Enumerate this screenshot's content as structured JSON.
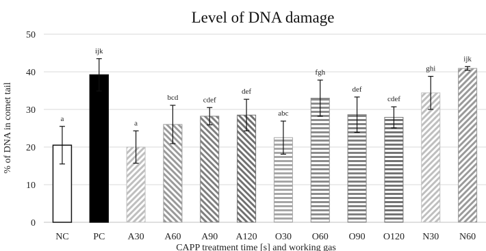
{
  "chart_data": {
    "type": "bar",
    "title": "Level of DNA damage",
    "xlabel": "CAPP treatment time [s] and working gas",
    "ylabel": "% of DNA in comet tail",
    "ylim": [
      0,
      50
    ],
    "yticks": [
      0,
      10,
      20,
      30,
      40,
      50
    ],
    "grid": true,
    "categories": [
      "NC",
      "PC",
      "A30",
      "A60",
      "A90",
      "A120",
      "O30",
      "O60",
      "O90",
      "O120",
      "N30",
      "N60"
    ],
    "values": [
      20.5,
      39.2,
      20.0,
      26.0,
      28.2,
      28.5,
      22.5,
      33.0,
      28.6,
      27.9,
      34.4,
      40.9
    ],
    "errors": [
      5.0,
      4.3,
      4.3,
      5.1,
      2.3,
      4.2,
      4.4,
      4.8,
      4.7,
      2.8,
      4.4,
      0.5
    ],
    "annotations": [
      "a",
      "ijk",
      "a",
      "bcd",
      "cdef",
      "def",
      "abc",
      "fgh",
      "def",
      "cdef",
      "ghi",
      "ijk"
    ],
    "bar_styles": [
      {
        "fill": "#ffffff",
        "pattern": "none",
        "stroke": "#111111"
      },
      {
        "fill": "#000000",
        "pattern": "none",
        "stroke": "#111111"
      },
      {
        "fill": "#bfbfbf",
        "pattern": "diag-right",
        "stroke": "#bfbfbf"
      },
      {
        "fill": "#9a9a9a",
        "pattern": "diag-left",
        "stroke": "#9a9a9a"
      },
      {
        "fill": "#7f7f7f",
        "pattern": "diag-left",
        "stroke": "#7f7f7f"
      },
      {
        "fill": "#707070",
        "pattern": "diag-left",
        "stroke": "#707070"
      },
      {
        "fill": "#a6a6a6",
        "pattern": "horizontal",
        "stroke": "#a6a6a6"
      },
      {
        "fill": "#8c8c8c",
        "pattern": "horizontal",
        "stroke": "#8c8c8c"
      },
      {
        "fill": "#808080",
        "pattern": "horizontal",
        "stroke": "#808080"
      },
      {
        "fill": "#737373",
        "pattern": "horizontal",
        "stroke": "#737373"
      },
      {
        "fill": "#bfbfbf",
        "pattern": "diag-right",
        "stroke": "#bfbfbf"
      },
      {
        "fill": "#9a9a9a",
        "pattern": "diag-right",
        "stroke": "#9a9a9a"
      }
    ]
  }
}
